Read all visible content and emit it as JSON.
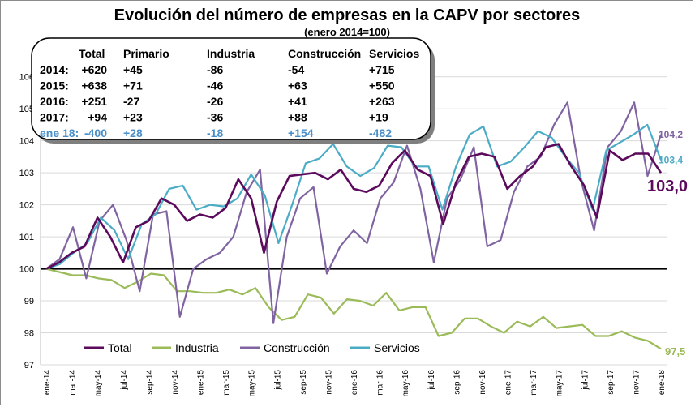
{
  "chart_data": {
    "type": "line",
    "title": "Evolución del número de empresas en la CAPV por sectores",
    "subtitle": "(enero 2014=100)",
    "ylim": [
      97,
      106.5
    ],
    "yticks": [
      "97",
      "98",
      "99",
      "100",
      "101",
      "102",
      "103",
      "104",
      "105",
      "106"
    ],
    "x_labels": [
      "ene-14",
      "mar-14",
      "may-14",
      "jul-14",
      "sep-14",
      "nov-14",
      "ene-15",
      "mar-15",
      "may-15",
      "jul-15",
      "sep-15",
      "nov-15",
      "ene-16",
      "mar-16",
      "may-16",
      "jul-16",
      "sep-16",
      "nov-16",
      "ene-17",
      "mar-17",
      "may-17",
      "jul-17",
      "sep-17",
      "nov-17",
      "ene-18"
    ],
    "series": [
      {
        "name": "Total",
        "color": "#5c0a5c",
        "values": [
          100,
          100.2,
          100.5,
          100.7,
          101.6,
          101.0,
          100.2,
          101.3,
          101.5,
          102.2,
          102.0,
          101.5,
          101.7,
          101.6,
          101.9,
          102.8,
          102.2,
          100.5,
          102.1,
          102.9,
          102.95,
          103.0,
          102.8,
          103.1,
          102.5,
          102.4,
          102.6,
          103.3,
          103.7,
          103.1,
          102.9,
          101.4,
          102.7,
          103.5,
          103.6,
          103.5,
          102.5,
          102.9,
          103.2,
          103.8,
          103.9,
          103.2,
          102.6,
          101.6,
          103.7,
          103.4,
          103.6,
          103.6,
          103.0
        ]
      },
      {
        "name": "Industria",
        "color": "#9bbb59",
        "values": [
          100,
          99.9,
          99.8,
          99.8,
          99.7,
          99.65,
          99.4,
          99.6,
          99.85,
          99.8,
          99.3,
          99.3,
          99.25,
          99.25,
          99.35,
          99.2,
          99.4,
          98.8,
          98.4,
          98.5,
          99.2,
          99.1,
          98.6,
          99.05,
          99.0,
          98.85,
          99.25,
          98.7,
          98.8,
          98.8,
          97.9,
          98.0,
          98.45,
          98.45,
          98.2,
          98.0,
          98.35,
          98.2,
          98.5,
          98.15,
          98.2,
          98.25,
          97.9,
          97.9,
          98.05,
          97.85,
          97.75,
          97.5
        ]
      },
      {
        "name": "Construcción",
        "color": "#8064a2",
        "values": [
          100,
          100.3,
          101.3,
          99.7,
          101.5,
          102.0,
          100.9,
          99.3,
          101.7,
          101.8,
          98.5,
          100.0,
          100.3,
          100.5,
          101.0,
          102.4,
          103.1,
          98.3,
          101.0,
          102.2,
          102.55,
          99.85,
          100.7,
          101.2,
          100.8,
          102.2,
          102.7,
          103.85,
          102.5,
          100.2,
          102.2,
          102.8,
          103.8,
          100.7,
          100.9,
          102.4,
          103.2,
          103.5,
          104.5,
          105.2,
          102.8,
          101.2,
          103.8,
          104.3,
          105.2,
          102.9,
          104.2
        ]
      },
      {
        "name": "Servicios",
        "color": "#4bacc6",
        "values": [
          100,
          100.15,
          100.5,
          100.8,
          101.6,
          101.2,
          100.3,
          101.4,
          101.7,
          102.5,
          102.6,
          101.85,
          102.0,
          101.95,
          102.2,
          102.95,
          102.3,
          100.8,
          102.0,
          103.3,
          103.45,
          103.9,
          103.2,
          102.9,
          103.15,
          103.85,
          103.8,
          103.2,
          103.2,
          101.85,
          103.2,
          104.2,
          104.45,
          103.2,
          103.35,
          103.8,
          104.3,
          104.1,
          103.5,
          103.0,
          101.85,
          103.7,
          103.95,
          104.2,
          104.5,
          103.4
        ]
      }
    ],
    "end_labels": {
      "construccion": "104,2",
      "servicios": "103,4",
      "total": "103,0",
      "industria": "97,5"
    },
    "legend_position": "bottom-left"
  },
  "table": {
    "headers": [
      "Total",
      "Primario",
      "Industria",
      "Construcción",
      "Servicios"
    ],
    "rows": [
      {
        "year": "2014:",
        "values": [
          "+620",
          "+45",
          "-86",
          "-54",
          "+715"
        ],
        "highlight": false
      },
      {
        "year": "2015:",
        "values": [
          "+638",
          "+71",
          "-46",
          "+63",
          "+550"
        ],
        "highlight": false
      },
      {
        "year": "2016:",
        "values": [
          "+251",
          "-27",
          "-26",
          "+41",
          "+263"
        ],
        "highlight": false
      },
      {
        "year": "2017:",
        "values": [
          "+94",
          "+23",
          "-36",
          "+88",
          "+19"
        ],
        "highlight": false
      },
      {
        "year": "ene 18:",
        "values": [
          "-400",
          "+28",
          "-18",
          "+154",
          "-482"
        ],
        "highlight": true
      }
    ]
  }
}
